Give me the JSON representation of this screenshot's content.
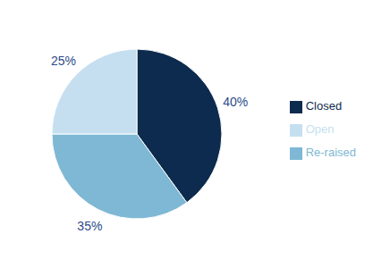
{
  "chart_data": {
    "type": "pie",
    "categories": [
      "Closed",
      "Re-raised",
      "Open"
    ],
    "values": [
      40,
      35,
      25
    ],
    "value_labels": [
      "40%",
      "35%",
      "25%"
    ],
    "colors": [
      "#0d2b4e",
      "#7eb8d4",
      "#c5dff0"
    ],
    "data_labels": true,
    "legend": "right"
  }
}
